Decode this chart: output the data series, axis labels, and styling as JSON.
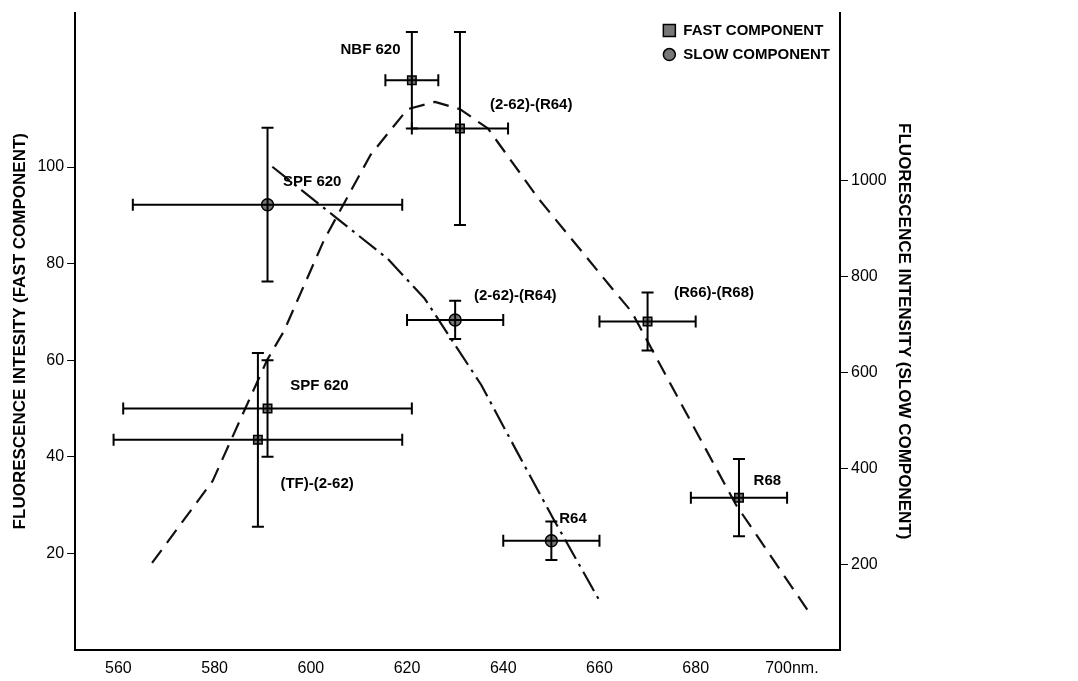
{
  "chart_data": {
    "type": "scatter",
    "xlabel": null,
    "ylabel": "FLUORESCENCE INTESITY (FAST COMPONENT)",
    "y2label": "FLUORESCENCE INTENSITY (SLOW COMPONENT)",
    "xlim": [
      551,
      710
    ],
    "xticks": [
      560,
      580,
      600,
      620,
      640,
      660,
      680,
      {
        "value": 700,
        "label": "700nm."
      }
    ],
    "ylim": [
      0,
      132
    ],
    "yticks": [
      20,
      40,
      60,
      80,
      100
    ],
    "y2lim": [
      23,
      1350
    ],
    "y2ticks": [
      200,
      400,
      600,
      800,
      1000
    ],
    "grid": false,
    "legend": "top right",
    "series": [
      {
        "name": "FAST COMPONENT",
        "marker": "square",
        "color": "#777777",
        "x": [
          621,
          631,
          670,
          689,
          591,
          589
        ],
        "values": [
          118,
          108,
          68,
          31.5,
          50,
          43.5
        ],
        "errors": [
          10,
          20,
          6,
          8,
          10,
          18
        ],
        "xerrors": [
          5.5,
          10,
          10,
          10,
          30,
          30
        ]
      },
      {
        "name": "SLOW COMPONENT",
        "marker": "circle",
        "axis": "y2",
        "color": "#777777",
        "x": [
          591,
          630,
          650
        ],
        "values": [
          950,
          710,
          250
        ],
        "errors": [
          160,
          40,
          40
        ],
        "xerrors": [
          28,
          10,
          10
        ]
      },
      {
        "type": "line",
        "line_style": "dashed",
        "marker": "none",
        "color": "#111111",
        "x": [
          567,
          579.6,
          590.9,
          594.4,
          602.8,
          612.4,
          620.1,
          625.8,
          631,
          636.8,
          647.3,
          662.5,
          666.7,
          678.6,
          688.4,
          703.4
        ],
        "values": [
          18,
          35,
          60,
          66,
          85,
          102.5,
          112,
          113.5,
          112,
          108,
          93.5,
          75,
          70,
          48,
          30,
          8
        ]
      },
      {
        "type": "line",
        "line_style": "dashdot",
        "marker": "none",
        "axis": "y2",
        "color": "#111111",
        "x": [
          592,
          605.5,
          616,
          623.7,
          635.4,
          643.1,
          650.4,
          659.8
        ],
        "values": [
          1029,
          921,
          837,
          754,
          575,
          431,
          296,
          129
        ]
      }
    ],
    "annotations": [
      "NBF 620",
      "(2-62)-(R64)",
      "SPF 620",
      "(2-62)-(R64)",
      "(R66)-(R68)",
      "SPF 620",
      "(TF)-(2-62)",
      "R64",
      "R68"
    ]
  }
}
